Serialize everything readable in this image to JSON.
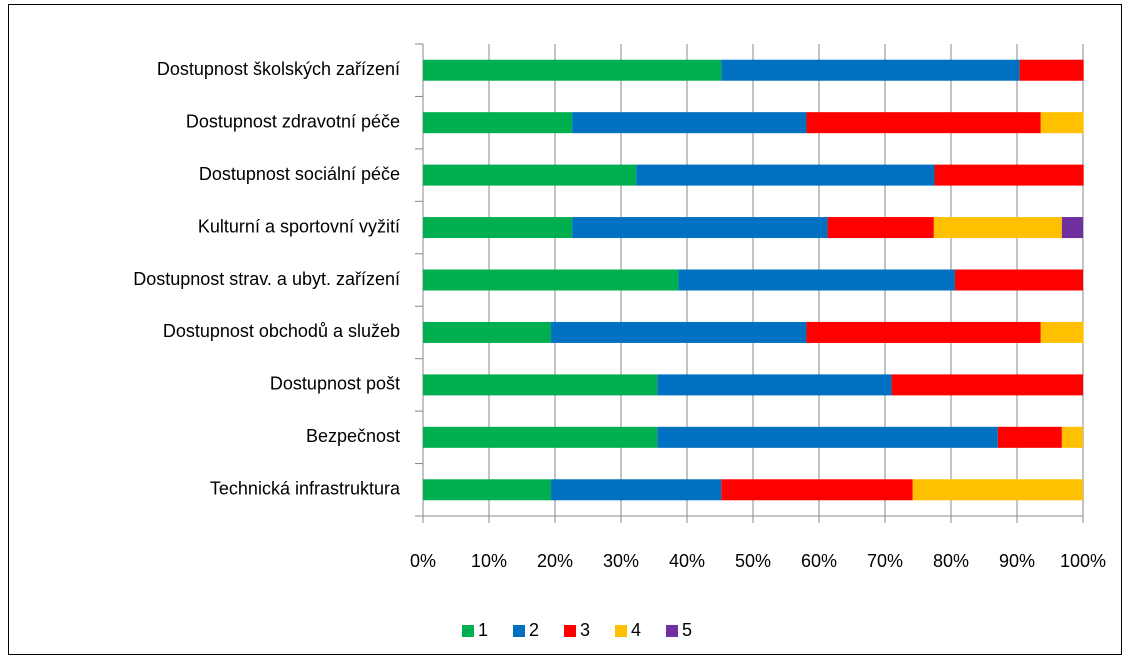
{
  "chart_data": {
    "type": "stacked-barh",
    "categories": [
      "Dostupnost školských zařízení",
      "Dostupnost zdravotní péče",
      "Dostupnost sociální péče",
      "Kulturní a sportovní vyžití",
      "Dostupnost strav. a ubyt. zařízení",
      "Dostupnost obchodů a služeb",
      "Dostupnost pošt",
      "Bezpečnost",
      "Technická infrastruktura"
    ],
    "series": [
      {
        "name": "1",
        "color": "#00b050",
        "values": [
          45.2,
          22.6,
          32.3,
          22.6,
          38.7,
          19.4,
          35.5,
          35.5,
          19.4
        ]
      },
      {
        "name": "2",
        "color": "#0070c0",
        "values": [
          45.2,
          35.5,
          45.2,
          38.7,
          41.9,
          38.7,
          35.5,
          51.6,
          25.8
        ]
      },
      {
        "name": "3",
        "color": "#ff0000",
        "values": [
          9.7,
          35.5,
          22.6,
          16.1,
          19.4,
          35.5,
          29.0,
          9.7,
          29.0
        ]
      },
      {
        "name": "4",
        "color": "#ffc000",
        "values": [
          0,
          6.5,
          0,
          19.4,
          0,
          6.5,
          0,
          3.2,
          25.8
        ]
      },
      {
        "name": "5",
        "color": "#7030a0",
        "values": [
          0,
          0,
          0,
          3.2,
          0,
          0,
          0,
          0,
          0
        ]
      }
    ],
    "xlim": [
      0,
      100
    ],
    "xticks": [
      {
        "value": 0,
        "label": "0%"
      },
      {
        "value": 10,
        "label": "10%"
      },
      {
        "value": 20,
        "label": "20%"
      },
      {
        "value": 30,
        "label": "30%"
      },
      {
        "value": 40,
        "label": "40%"
      },
      {
        "value": 50,
        "label": "50%"
      },
      {
        "value": 60,
        "label": "60%"
      },
      {
        "value": 70,
        "label": "70%"
      },
      {
        "value": 80,
        "label": "80%"
      },
      {
        "value": 90,
        "label": "90%"
      },
      {
        "value": 100,
        "label": "100%"
      }
    ],
    "grid": true,
    "legend": "bottom"
  }
}
